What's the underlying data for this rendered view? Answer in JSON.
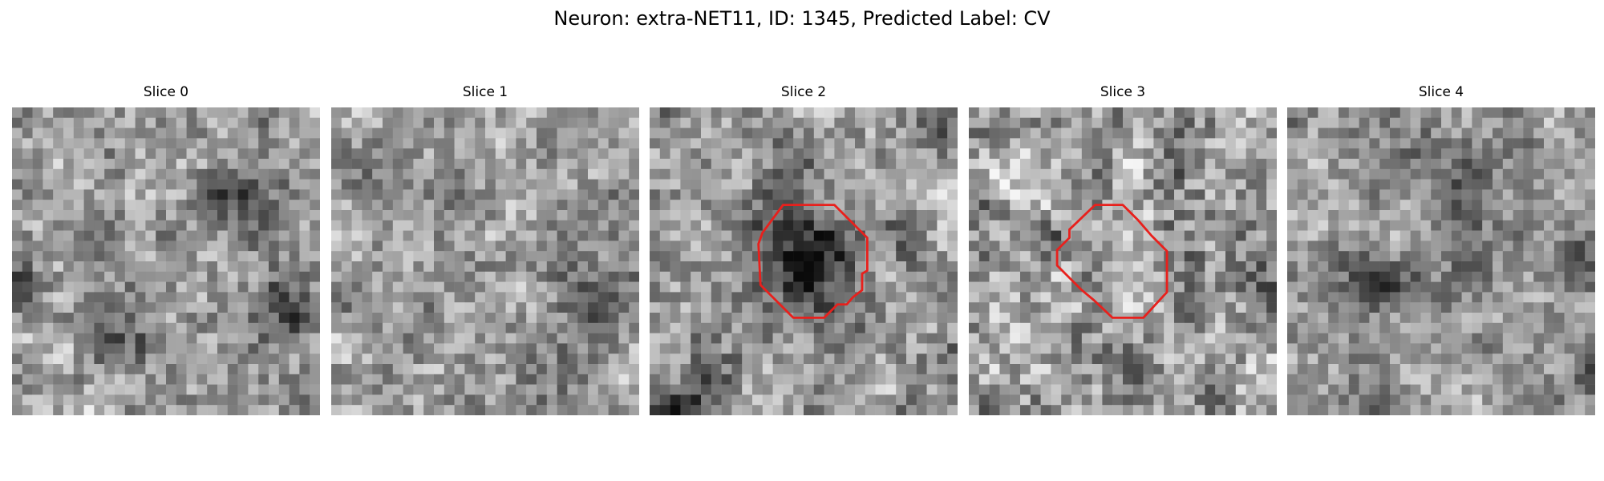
{
  "figure": {
    "title": "Neuron: extra-NET11, ID: 1345, Predicted Label: CV"
  },
  "colors": {
    "background": "#ffffff",
    "contour": "#e8201c",
    "colormap": "gray"
  },
  "slices": [
    {
      "title": "Slice 0",
      "has_contour": false
    },
    {
      "title": "Slice 1",
      "has_contour": false
    },
    {
      "title": "Slice 2",
      "has_contour": true
    },
    {
      "title": "Slice 3",
      "has_contour": true
    },
    {
      "title": "Slice 4",
      "has_contour": false
    }
  ]
}
